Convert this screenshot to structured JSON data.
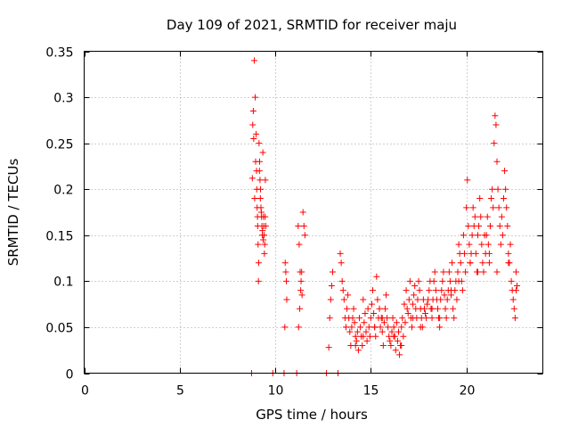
{
  "chart_data": {
    "type": "scatter",
    "title": "Day 109 of 2021, SRMTID for receiver maju",
    "xlabel": "GPS time / hours",
    "ylabel": "SRMTID / TECUs",
    "xlim": [
      0,
      24
    ],
    "ylim": [
      0,
      0.35
    ],
    "xticks": [
      0,
      5,
      10,
      15,
      20
    ],
    "yticks": [
      0,
      0.05,
      0.1,
      0.15,
      0.2,
      0.25,
      0.3,
      0.35
    ],
    "xtick_labels": [
      "0",
      "5",
      "10",
      "15",
      "20"
    ],
    "ytick_labels": [
      "0",
      "0.05",
      "0.1",
      "0.15",
      "0.2",
      "0.25",
      "0.3",
      "0.35"
    ],
    "grid": true,
    "marker": "+",
    "color": "#ff0000",
    "series": [
      {
        "name": "SRMTID",
        "x": [
          8.8,
          8.85,
          8.9,
          8.95,
          9.0,
          9.02,
          9.05,
          9.08,
          9.1,
          9.12,
          9.15,
          9.18,
          9.2,
          9.22,
          9.25,
          9.28,
          9.3,
          9.32,
          9.35,
          9.38,
          9.4,
          9.42,
          9.45,
          9.48,
          9.5,
          8.82,
          8.87,
          8.92,
          8.97,
          9.03,
          9.07,
          9.13,
          9.17,
          9.23,
          9.27,
          9.33,
          9.37,
          9.43,
          9.47,
          10.5,
          10.52,
          10.55,
          10.58,
          10.6,
          11.2,
          11.25,
          11.3,
          11.35,
          11.4,
          11.45,
          11.5,
          11.55,
          11.22,
          11.28,
          11.33,
          11.38,
          12.8,
          12.85,
          12.9,
          12.95,
          13.0,
          13.4,
          13.45,
          13.5,
          13.55,
          13.6,
          13.65,
          13.7,
          13.75,
          13.8,
          13.85,
          13.9,
          13.95,
          14.0,
          14.05,
          14.1,
          14.15,
          14.2,
          14.25,
          14.3,
          14.35,
          14.4,
          14.45,
          14.5,
          14.55,
          14.6,
          14.65,
          14.7,
          14.75,
          14.8,
          14.85,
          14.9,
          14.95,
          15.0,
          15.05,
          15.1,
          15.15,
          15.2,
          15.25,
          15.3,
          15.35,
          15.4,
          15.45,
          15.5,
          15.55,
          15.6,
          15.65,
          15.7,
          15.75,
          15.8,
          15.85,
          15.9,
          15.95,
          16.0,
          16.05,
          16.1,
          16.15,
          16.2,
          16.25,
          16.3,
          16.35,
          16.4,
          16.45,
          16.5,
          16.55,
          16.6,
          16.65,
          16.7,
          16.75,
          16.8,
          16.85,
          16.9,
          16.95,
          17.0,
          17.05,
          17.1,
          17.15,
          17.2,
          17.25,
          17.3,
          17.35,
          17.4,
          17.45,
          17.5,
          17.55,
          17.6,
          17.65,
          17.7,
          17.75,
          17.8,
          17.85,
          17.9,
          17.95,
          18.0,
          18.05,
          18.1,
          18.15,
          18.2,
          18.25,
          18.3,
          18.35,
          18.4,
          18.45,
          18.5,
          18.55,
          18.6,
          18.65,
          18.7,
          18.75,
          18.8,
          18.85,
          18.9,
          18.95,
          19.0,
          19.05,
          19.1,
          19.15,
          19.2,
          19.25,
          19.3,
          19.35,
          19.4,
          19.45,
          19.5,
          19.55,
          19.6,
          19.65,
          19.7,
          19.75,
          19.8,
          19.85,
          19.9,
          19.95,
          20.0,
          20.05,
          20.1,
          20.15,
          20.2,
          20.25,
          20.3,
          20.35,
          20.4,
          20.45,
          20.5,
          20.55,
          20.6,
          20.65,
          20.7,
          20.75,
          20.8,
          20.85,
          20.9,
          20.95,
          21.0,
          21.05,
          21.1,
          21.15,
          21.2,
          21.25,
          21.3,
          21.35,
          21.4,
          21.45,
          21.5,
          21.55,
          21.6,
          21.65,
          21.7,
          21.75,
          21.8,
          21.85,
          21.9,
          21.95,
          22.0,
          22.05,
          22.1,
          22.15,
          22.2,
          22.25,
          22.3,
          22.35,
          22.4,
          22.45,
          22.5,
          22.55,
          22.6,
          22.65,
          14.2,
          14.6,
          15.2,
          15.6,
          16.2,
          16.6,
          17.2,
          17.6,
          18.2,
          18.6,
          19.2,
          19.6,
          20.2,
          20.6,
          21.2,
          21.6,
          22.2,
          22.6,
          8.76,
          9.87,
          10.46,
          11.12,
          12.68,
          13.28
        ],
        "y": [
          0.212,
          0.285,
          0.34,
          0.3,
          0.26,
          0.22,
          0.18,
          0.16,
          0.14,
          0.1,
          0.25,
          0.23,
          0.21,
          0.19,
          0.18,
          0.17,
          0.16,
          0.15,
          0.24,
          0.17,
          0.16,
          0.15,
          0.14,
          0.21,
          0.16,
          0.27,
          0.255,
          0.19,
          0.23,
          0.2,
          0.17,
          0.12,
          0.22,
          0.2,
          0.175,
          0.155,
          0.145,
          0.13,
          0.17,
          0.05,
          0.12,
          0.11,
          0.1,
          0.08,
          0.16,
          0.14,
          0.11,
          0.1,
          0.085,
          0.175,
          0.16,
          0.15,
          0.05,
          0.07,
          0.09,
          0.11,
          0.028,
          0.06,
          0.08,
          0.095,
          0.11,
          0.13,
          0.12,
          0.1,
          0.09,
          0.08,
          0.06,
          0.05,
          0.07,
          0.085,
          0.06,
          0.045,
          0.03,
          0.05,
          0.06,
          0.07,
          0.055,
          0.04,
          0.035,
          0.045,
          0.025,
          0.06,
          0.05,
          0.04,
          0.03,
          0.08,
          0.055,
          0.065,
          0.045,
          0.035,
          0.07,
          0.05,
          0.04,
          0.06,
          0.075,
          0.09,
          0.065,
          0.05,
          0.04,
          0.105,
          0.08,
          0.06,
          0.07,
          0.05,
          0.06,
          0.045,
          0.03,
          0.055,
          0.07,
          0.085,
          0.06,
          0.05,
          0.04,
          0.035,
          0.03,
          0.045,
          0.06,
          0.05,
          0.04,
          0.025,
          0.055,
          0.035,
          0.045,
          0.02,
          0.03,
          0.05,
          0.06,
          0.04,
          0.075,
          0.055,
          0.09,
          0.07,
          0.065,
          0.08,
          0.1,
          0.06,
          0.05,
          0.075,
          0.085,
          0.095,
          0.07,
          0.06,
          0.08,
          0.1,
          0.09,
          0.07,
          0.06,
          0.05,
          0.08,
          0.07,
          0.065,
          0.06,
          0.075,
          0.08,
          0.09,
          0.1,
          0.07,
          0.06,
          0.08,
          0.1,
          0.11,
          0.09,
          0.08,
          0.07,
          0.06,
          0.05,
          0.08,
          0.09,
          0.1,
          0.11,
          0.085,
          0.07,
          0.06,
          0.08,
          0.09,
          0.11,
          0.1,
          0.085,
          0.12,
          0.07,
          0.06,
          0.09,
          0.1,
          0.08,
          0.11,
          0.14,
          0.13,
          0.12,
          0.1,
          0.09,
          0.15,
          0.13,
          0.11,
          0.18,
          0.21,
          0.16,
          0.14,
          0.12,
          0.13,
          0.15,
          0.18,
          0.16,
          0.17,
          0.13,
          0.11,
          0.15,
          0.16,
          0.19,
          0.17,
          0.14,
          0.12,
          0.11,
          0.15,
          0.13,
          0.15,
          0.17,
          0.14,
          0.12,
          0.16,
          0.19,
          0.2,
          0.18,
          0.25,
          0.28,
          0.27,
          0.23,
          0.2,
          0.18,
          0.16,
          0.14,
          0.17,
          0.15,
          0.19,
          0.22,
          0.2,
          0.18,
          0.16,
          0.13,
          0.12,
          0.14,
          0.1,
          0.09,
          0.08,
          0.07,
          0.06,
          0.11,
          0.095,
          0.03,
          0.04,
          0.05,
          0.06,
          0.04,
          0.03,
          0.06,
          0.05,
          0.07,
          0.06,
          0.09,
          0.1,
          0.12,
          0.11,
          0.13,
          0.11,
          0.12,
          0.09,
          0.0,
          0.0,
          0.0,
          0.0,
          0.0,
          0.0
        ]
      }
    ]
  }
}
